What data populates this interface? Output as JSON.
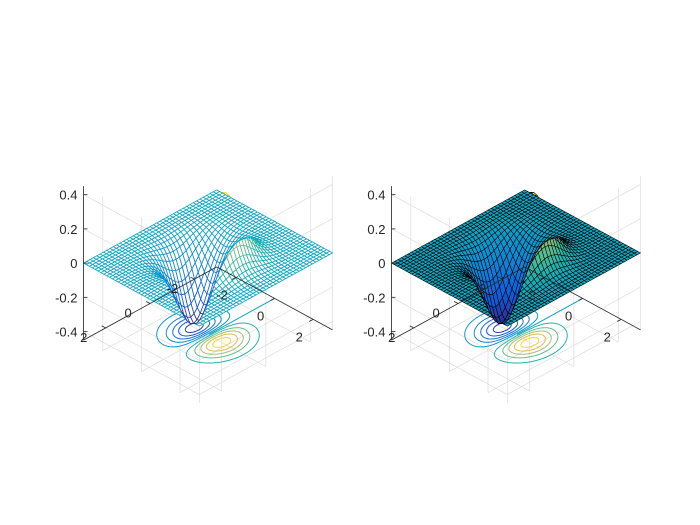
{
  "figure": {
    "background": "#ffffff"
  },
  "chart_data": [
    {
      "type": "surface",
      "style": "mesh",
      "function": "z = x*exp(-x^2 - y^2)",
      "x": {
        "range": [
          -3,
          3
        ],
        "ticks": [
          -2,
          0,
          2
        ],
        "tick_labels": [
          "-2",
          "0",
          "2"
        ]
      },
      "y": {
        "range": [
          -3,
          3
        ],
        "ticks": [
          -2,
          0,
          2
        ],
        "tick_labels": [
          "-2",
          "0",
          "2"
        ]
      },
      "z": {
        "range": [
          -0.45,
          0.45
        ],
        "ticks": [
          -0.4,
          -0.2,
          0,
          0.2,
          0.4
        ],
        "tick_labels": [
          "-0.4",
          "-0.2",
          "0",
          "0.2",
          "0.4"
        ]
      },
      "peak": {
        "x": 0.71,
        "y": 0,
        "z": 0.43
      },
      "trough": {
        "x": -0.71,
        "y": 0,
        "z": -0.43
      },
      "contour_projection": "floor",
      "colormap": "parula",
      "grid": true,
      "view": "3d"
    },
    {
      "type": "surface",
      "style": "surfc",
      "function": "z = x*exp(-x^2 - y^2)",
      "x": {
        "range": [
          -3,
          3
        ],
        "ticks": [
          -2,
          0,
          2
        ],
        "tick_labels": [
          "-2",
          "0",
          "2"
        ]
      },
      "y": {
        "range": [
          -3,
          3
        ],
        "ticks": [
          -2,
          0,
          2
        ],
        "tick_labels": [
          "-2",
          "0",
          "2"
        ]
      },
      "z": {
        "range": [
          -0.45,
          0.45
        ],
        "ticks": [
          -0.4,
          -0.2,
          0,
          0.2,
          0.4
        ],
        "tick_labels": [
          "-0.4",
          "-0.2",
          "0",
          "0.2",
          "0.4"
        ]
      },
      "peak": {
        "x": 0.71,
        "y": 0,
        "z": 0.43
      },
      "trough": {
        "x": -0.71,
        "y": 0,
        "z": -0.43
      },
      "contour_projection": "floor",
      "colormap": "parula",
      "edge_color": "#000000",
      "grid": true,
      "view": "3d"
    }
  ]
}
